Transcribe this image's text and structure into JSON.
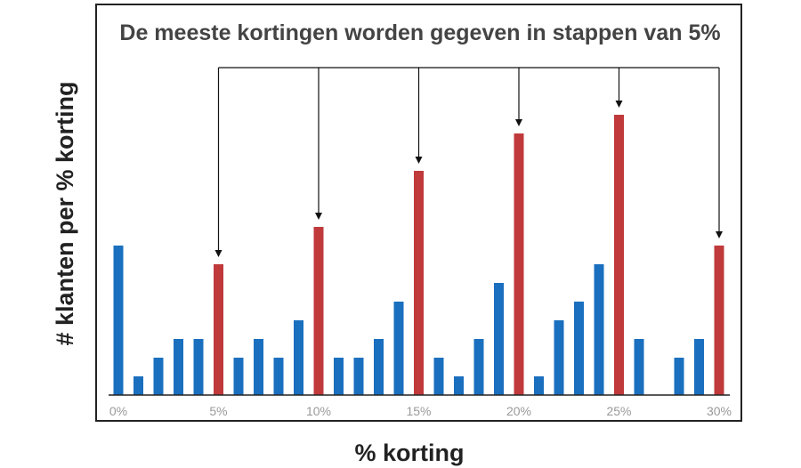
{
  "chart_data": {
    "type": "bar",
    "title": "De meeste kortingen worden gegeven in stappen van 5%",
    "xlabel": "% korting",
    "ylabel": "# klanten per % korting",
    "x": [
      0,
      1,
      2,
      3,
      4,
      5,
      6,
      7,
      8,
      9,
      10,
      11,
      12,
      13,
      14,
      15,
      16,
      17,
      18,
      19,
      20,
      21,
      22,
      23,
      24,
      25,
      26,
      27,
      28,
      29,
      30
    ],
    "values": [
      8,
      1,
      2,
      3,
      3,
      7,
      2,
      3,
      2,
      4,
      9,
      2,
      2,
      3,
      5,
      12,
      2,
      1,
      3,
      6,
      14,
      1,
      4,
      5,
      7,
      15,
      3,
      0,
      2,
      3,
      8
    ],
    "highlight": [
      5,
      10,
      15,
      20,
      25,
      30
    ],
    "tick_labels": [
      "0%",
      "5%",
      "10%",
      "15%",
      "20%",
      "25%",
      "30%"
    ],
    "tick_values": [
      0,
      5,
      10,
      15,
      20,
      25,
      30
    ],
    "xlim": [
      0,
      30
    ],
    "ylim": [
      0,
      15
    ],
    "y_ticks_shown": false,
    "grid": false,
    "annotation": "arrows from title bracket to each 5% step",
    "colors": {
      "normal": "#1a6fbf",
      "highlight": "#c0393b",
      "arrow": "#111111"
    }
  }
}
